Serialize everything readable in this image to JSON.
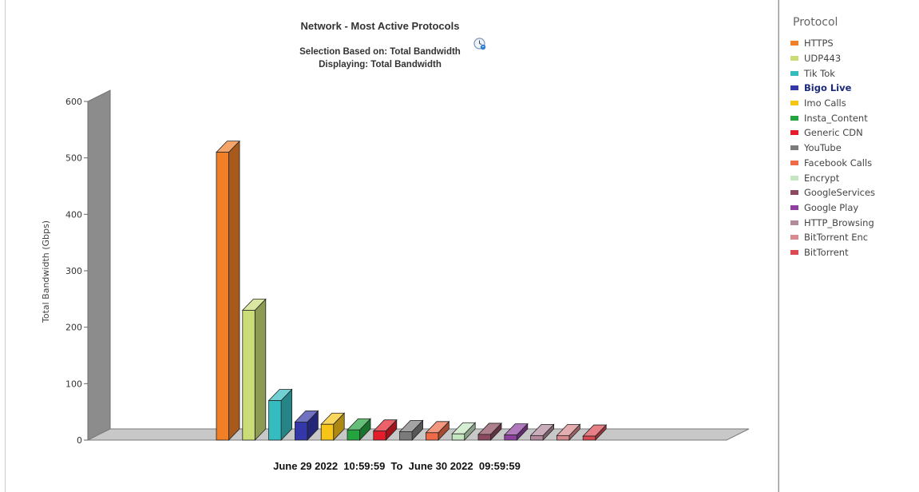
{
  "chart_data": {
    "type": "bar",
    "title": "Network - Most Active Protocols",
    "subtitle_lines": [
      "Selection Based on: Total Bandwidth",
      "Displaying: Total Bandwidth"
    ],
    "ylabel": "Total Bandwidth (Gbps)",
    "xlabel": "June 29 2022  10:59:59  To  June 30 2022  09:59:59",
    "ylim": [
      0,
      600
    ],
    "yticks": [
      "0",
      "100",
      "200",
      "300",
      "400",
      "500",
      "600"
    ],
    "legend_title": "Protocol",
    "legend_position": "right",
    "grid": false,
    "categories": [
      "HTTPS",
      "UDP443",
      "Tik Tok",
      "Bigo Live",
      "Imo Calls",
      "Insta_Content",
      "Generic CDN",
      "YouTube",
      "Facebook Calls",
      "Encrypt",
      "GoogleServices",
      "Google Play",
      "HTTP_Browsing",
      "BitTorrent Enc",
      "BitTorrent"
    ],
    "values": [
      510,
      230,
      70,
      32,
      28,
      18,
      16,
      15,
      13,
      11,
      10,
      9,
      8,
      8,
      7
    ],
    "colors": [
      "#f07f28",
      "#c9dc78",
      "#34bcc0",
      "#3437a8",
      "#f7c418",
      "#23a43f",
      "#e51d2a",
      "#7b7b7b",
      "#ee6a48",
      "#c4e6c0",
      "#8c4a5e",
      "#8e3fa0",
      "#b38a9c",
      "#d98a8e",
      "#db4a52"
    ],
    "highlighted": "Bigo Live"
  }
}
